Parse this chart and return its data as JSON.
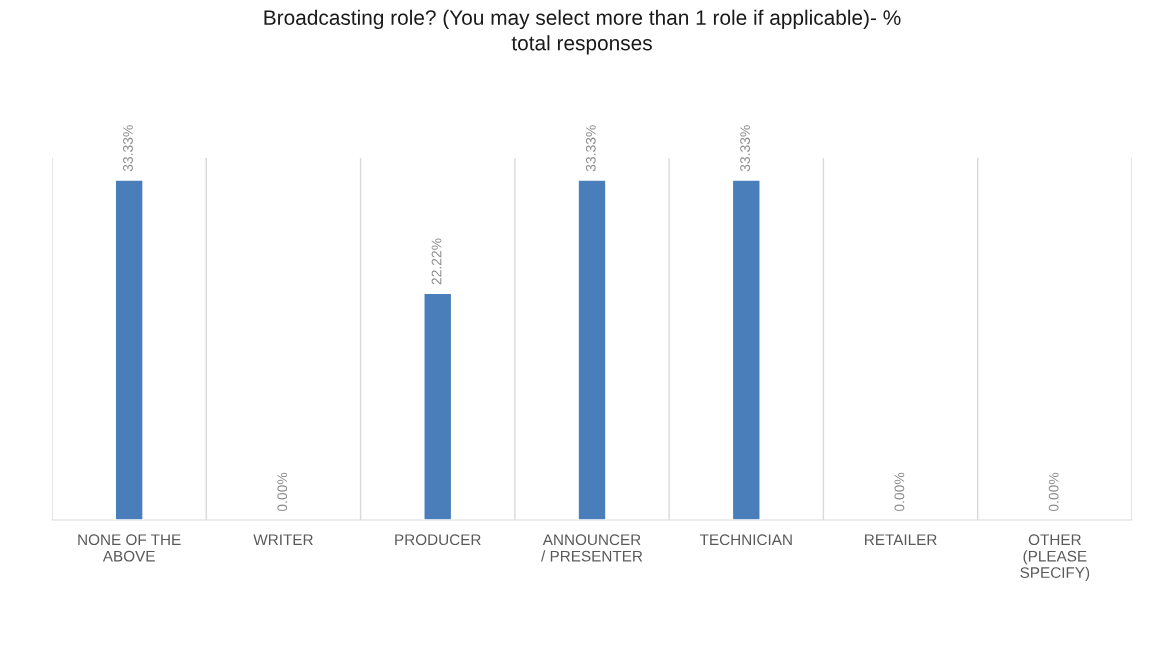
{
  "chart_data": {
    "type": "bar",
    "title": "Broadcasting role? (You may select more than 1 role if applicable)- %\ntotal responses",
    "categories": [
      "NONE OF THE\nABOVE",
      "WRITER",
      "PRODUCER",
      "ANNOUNCER\n/ PRESENTER",
      "TECHNICIAN",
      "RETAILER",
      "OTHER\n(PLEASE\nSPECIFY)"
    ],
    "values": [
      33.33,
      0,
      22.22,
      33.33,
      33.33,
      0,
      0
    ],
    "value_labels": [
      "33.33%",
      "0.00%",
      "22.22%",
      "33.33%",
      "33.33%",
      "0.00%",
      "0.00%"
    ],
    "color": "#4a7ebb",
    "grid": "x",
    "legend": false
  }
}
